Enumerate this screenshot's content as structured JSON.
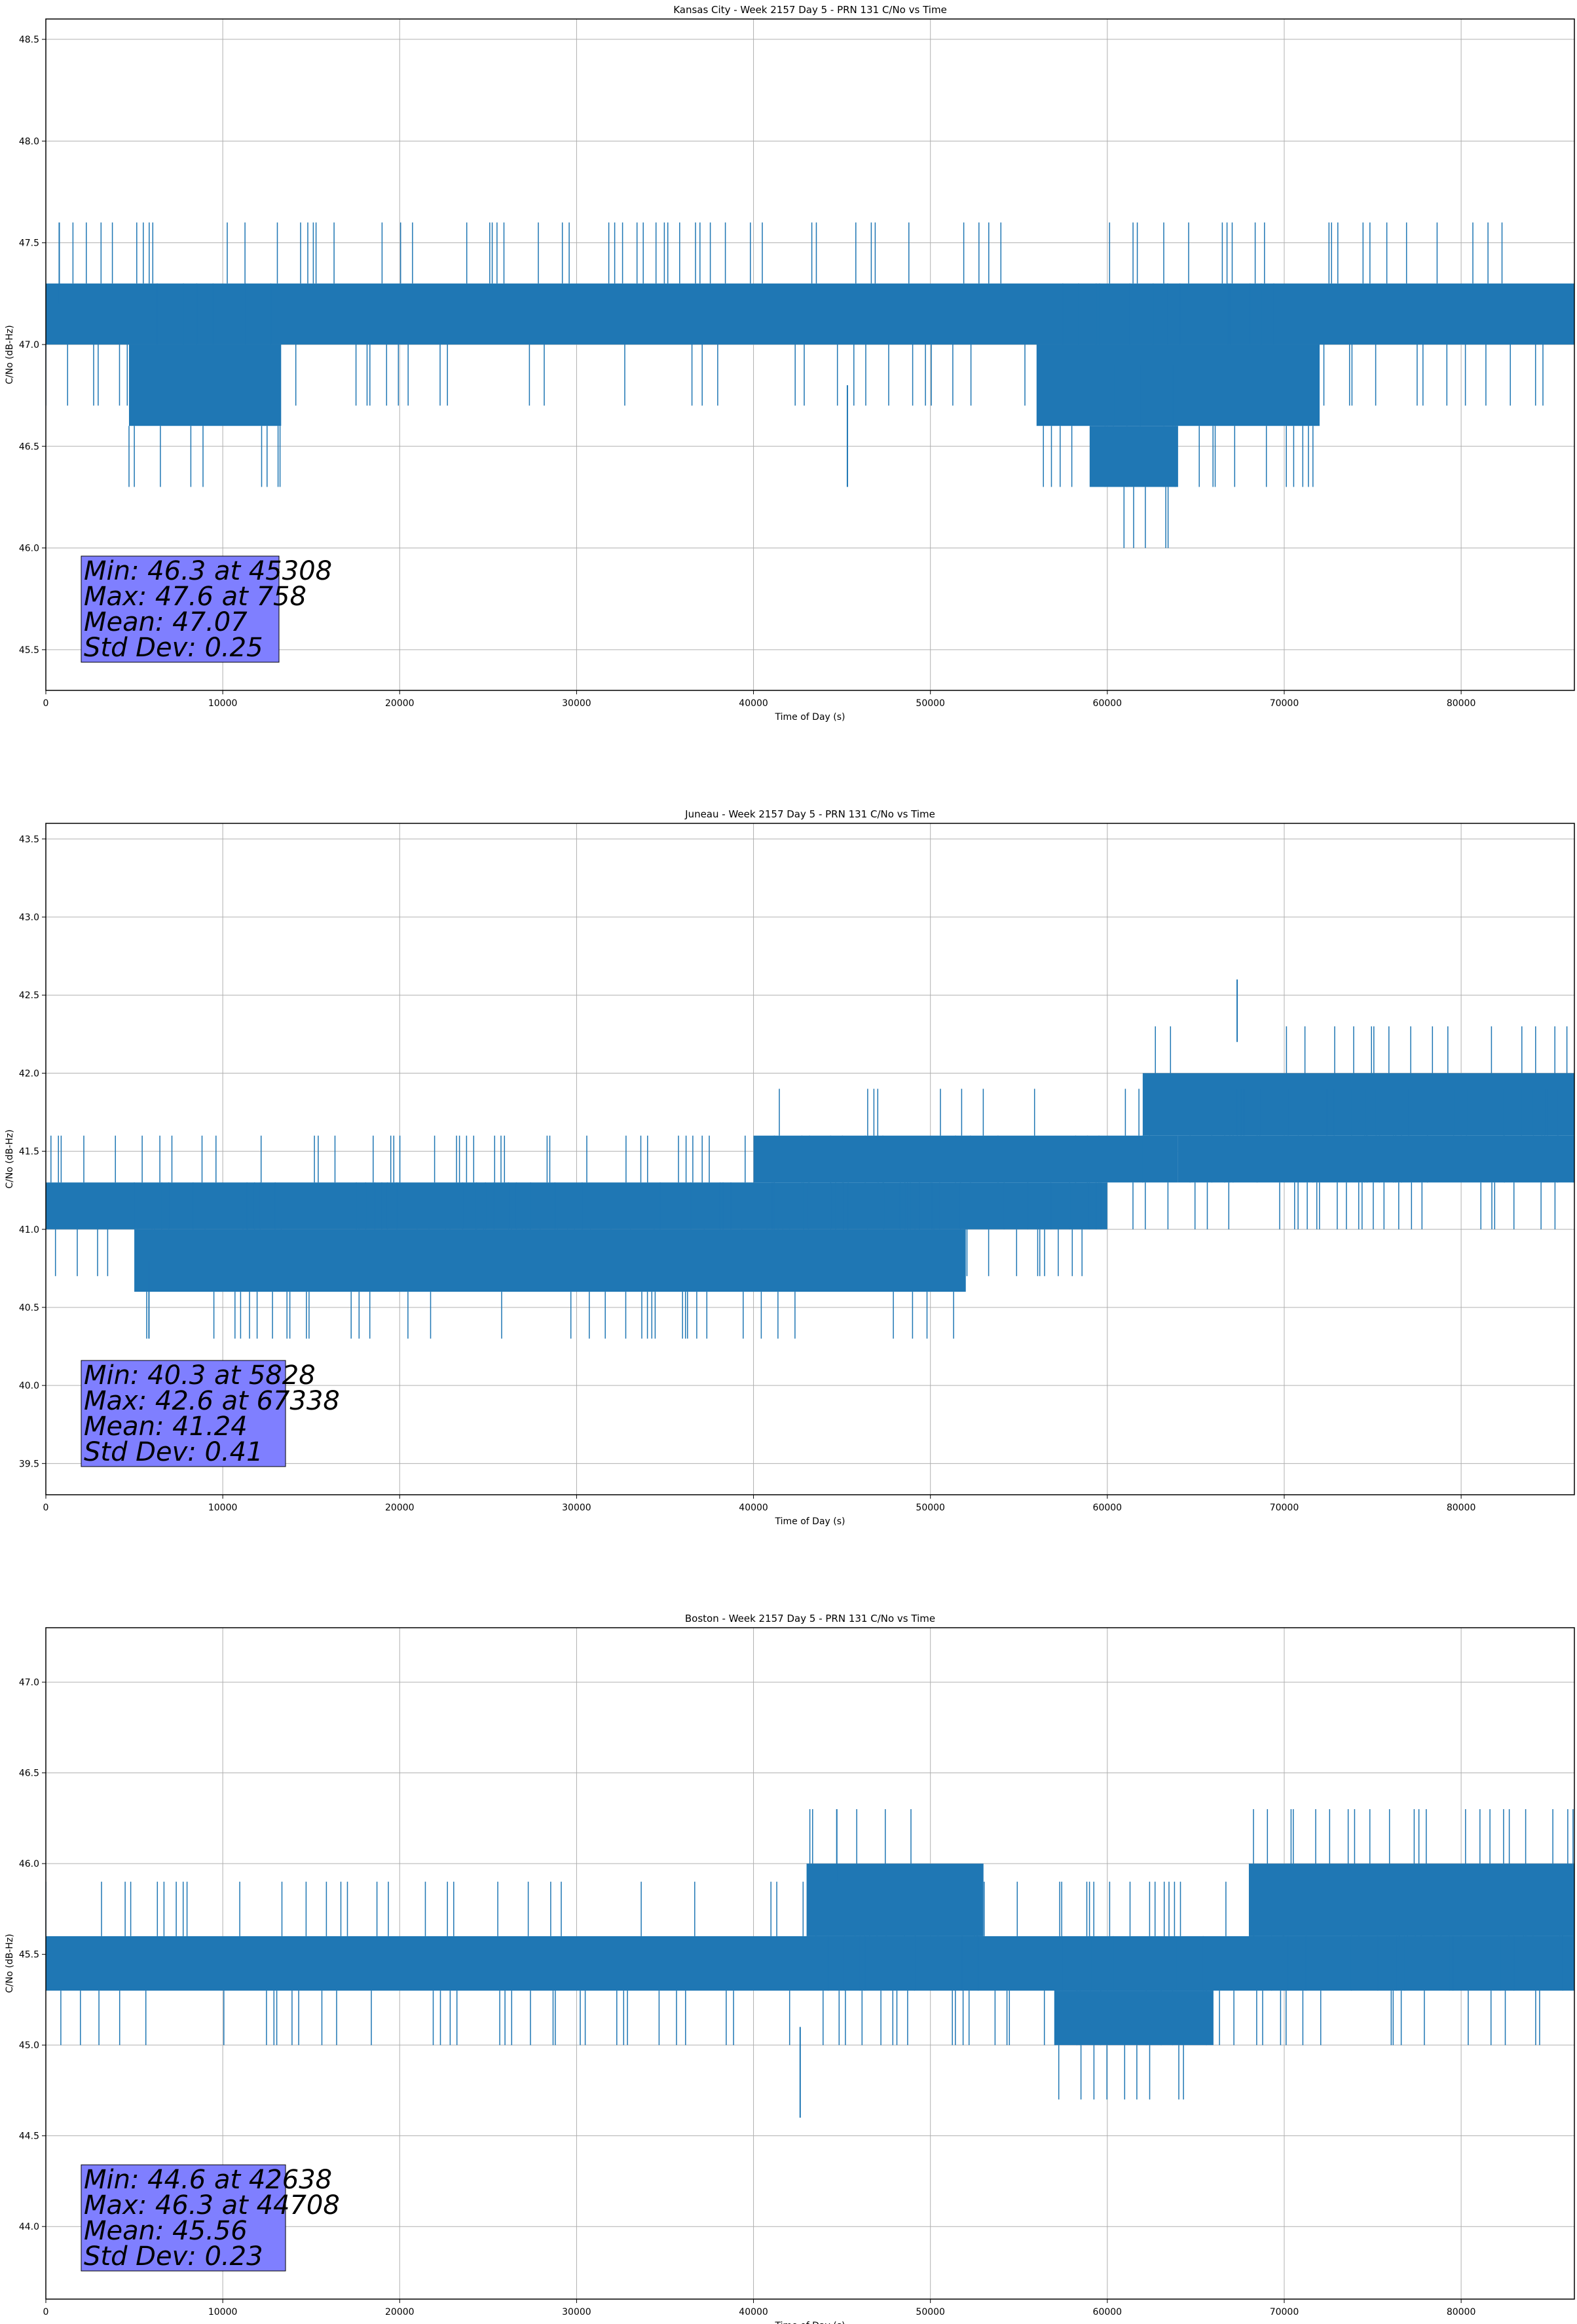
{
  "chart_data": [
    {
      "type": "line",
      "title": "Kansas City - Week 2157 Day 5 - PRN 131 C/No vs Time",
      "xlabel": "Time of Day (s)",
      "ylabel": "C/No (dB-Hz)",
      "xlim": [
        0,
        86400
      ],
      "ylim": [
        45.3,
        48.6
      ],
      "xticks": [
        "0",
        "10000",
        "20000",
        "30000",
        "40000",
        "50000",
        "60000",
        "70000",
        "80000"
      ],
      "yticks": [
        "45.5",
        "46.0",
        "46.5",
        "47.0",
        "47.5",
        "48.0",
        "48.5"
      ],
      "grid": true,
      "color": "#1f77b4",
      "bands": [
        {
          "x": [
            0,
            86400
          ],
          "y": [
            47.0,
            47.3
          ]
        },
        {
          "x": [
            4700,
            13300
          ],
          "y": [
            46.6,
            47.0
          ]
        },
        {
          "x": [
            56000,
            72000
          ],
          "y": [
            46.6,
            47.0
          ]
        },
        {
          "x": [
            59000,
            64000
          ],
          "y": [
            46.3,
            46.6
          ]
        }
      ],
      "stats": [
        "Min: 46.3 at 45308",
        "Max: 47.6 at 758",
        "Mean: 47.07",
        "Std Dev: 0.25"
      ]
    },
    {
      "type": "line",
      "title": "Juneau - Week 2157 Day 5 - PRN 131 C/No vs Time",
      "xlabel": "Time of Day (s)",
      "ylabel": "C/No (dB-Hz)",
      "xlim": [
        0,
        86400
      ],
      "ylim": [
        39.3,
        43.6
      ],
      "xticks": [
        "0",
        "10000",
        "20000",
        "30000",
        "40000",
        "50000",
        "60000",
        "70000",
        "80000"
      ],
      "yticks": [
        "39.5",
        "40.0",
        "40.5",
        "41.0",
        "41.5",
        "42.0",
        "42.5",
        "43.0",
        "43.5"
      ],
      "grid": true,
      "color": "#1f77b4",
      "bands": [
        {
          "x": [
            0,
            60000
          ],
          "y": [
            41.0,
            41.3
          ]
        },
        {
          "x": [
            5000,
            52000
          ],
          "y": [
            40.6,
            41.0
          ]
        },
        {
          "x": [
            40000,
            64000
          ],
          "y": [
            41.3,
            41.6
          ]
        },
        {
          "x": [
            62000,
            86400
          ],
          "y": [
            41.6,
            42.0
          ]
        },
        {
          "x": [
            64000,
            86400
          ],
          "y": [
            41.3,
            41.6
          ]
        }
      ],
      "stats": [
        "Min: 40.3 at 5828",
        "Max: 42.6 at 67338",
        "Mean: 41.24",
        "Std Dev: 0.41"
      ]
    },
    {
      "type": "line",
      "title": "Boston - Week 2157 Day 5 - PRN 131 C/No vs Time",
      "xlabel": "Time of Day (s)",
      "ylabel": "C/No (dB-Hz)",
      "xlim": [
        0,
        86400
      ],
      "ylim": [
        43.6,
        47.3
      ],
      "xticks": [
        "0",
        "10000",
        "20000",
        "30000",
        "40000",
        "50000",
        "60000",
        "70000",
        "80000"
      ],
      "yticks": [
        "44.0",
        "44.5",
        "45.0",
        "45.5",
        "46.0",
        "46.5",
        "47.0"
      ],
      "grid": true,
      "color": "#1f77b4",
      "bands": [
        {
          "x": [
            0,
            86400
          ],
          "y": [
            45.3,
            45.6
          ]
        },
        {
          "x": [
            43000,
            53000
          ],
          "y": [
            45.6,
            46.0
          ]
        },
        {
          "x": [
            68000,
            86400
          ],
          "y": [
            45.6,
            46.0
          ]
        },
        {
          "x": [
            57000,
            66000
          ],
          "y": [
            45.0,
            45.3
          ]
        }
      ],
      "stats": [
        "Min: 44.6 at 42638",
        "Max: 46.3 at 44708",
        "Mean: 45.56",
        "Std Dev: 0.23"
      ]
    }
  ]
}
